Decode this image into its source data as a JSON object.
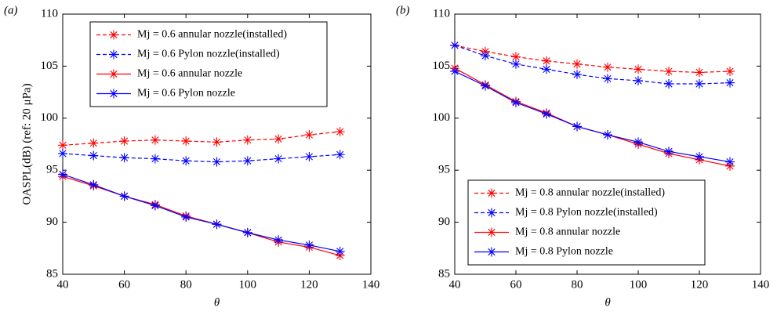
{
  "chart_data": [
    {
      "type": "line",
      "label": "(a)",
      "ylabel": "OASPL(dB) (ref: 20 μPa)",
      "xlabel": "θ",
      "x": [
        40,
        50,
        60,
        70,
        80,
        90,
        100,
        110,
        120,
        130
      ],
      "xlim": [
        40,
        140
      ],
      "xticks": [
        40,
        60,
        80,
        100,
        120,
        140
      ],
      "ylim": [
        85,
        110
      ],
      "yticks": [
        85,
        90,
        95,
        100,
        105,
        110
      ],
      "legend": "upper left",
      "series": [
        {
          "name": "Mj = 0.6 annular nozzle(installed)",
          "color": "#ff0000",
          "style": "dashed",
          "values": [
            97.4,
            97.6,
            97.8,
            97.9,
            97.8,
            97.7,
            97.9,
            98.0,
            98.4,
            98.7
          ]
        },
        {
          "name": "Mj = 0.6 Pylon nozzle(installed)",
          "color": "#0000ff",
          "style": "dashed",
          "values": [
            96.6,
            96.4,
            96.2,
            96.1,
            95.9,
            95.8,
            95.9,
            96.1,
            96.3,
            96.5
          ]
        },
        {
          "name": "Mj = 0.6 annular nozzle",
          "color": "#ff0000",
          "style": "solid",
          "values": [
            94.4,
            93.5,
            92.5,
            91.7,
            90.6,
            89.8,
            89.0,
            88.1,
            87.6,
            86.8
          ]
        },
        {
          "name": "Mj = 0.6 Pylon nozzle",
          "color": "#0000ff",
          "style": "solid",
          "values": [
            94.6,
            93.6,
            92.5,
            91.6,
            90.5,
            89.8,
            89.0,
            88.3,
            87.8,
            87.2
          ]
        }
      ]
    },
    {
      "type": "line",
      "label": "(b)",
      "xlabel": "θ",
      "x": [
        40,
        50,
        60,
        70,
        80,
        90,
        100,
        110,
        120,
        130
      ],
      "xlim": [
        40,
        140
      ],
      "xticks": [
        40,
        60,
        80,
        100,
        120,
        140
      ],
      "ylim": [
        85,
        110
      ],
      "yticks": [
        85,
        90,
        95,
        100,
        105,
        110
      ],
      "legend": "lower left",
      "series": [
        {
          "name": "Mj = 0.8 annular nozzle(installed)",
          "color": "#ff0000",
          "style": "dashed",
          "values": [
            107.0,
            106.4,
            105.9,
            105.5,
            105.2,
            104.9,
            104.7,
            104.5,
            104.4,
            104.5
          ]
        },
        {
          "name": "Mj = 0.8 Pylon nozzle(installed)",
          "color": "#0000ff",
          "style": "dashed",
          "values": [
            107.0,
            106.0,
            105.2,
            104.7,
            104.2,
            103.8,
            103.6,
            103.3,
            103.3,
            103.4
          ]
        },
        {
          "name": "Mj = 0.8 annular nozzle",
          "color": "#ff0000",
          "style": "solid",
          "values": [
            104.8,
            103.2,
            101.6,
            100.5,
            99.2,
            98.4,
            97.5,
            96.6,
            96.0,
            95.4
          ]
        },
        {
          "name": "Mj = 0.8 Pylon nozzle",
          "color": "#0000ff",
          "style": "solid",
          "values": [
            104.5,
            103.1,
            101.5,
            100.4,
            99.2,
            98.4,
            97.7,
            96.8,
            96.3,
            95.8
          ]
        }
      ]
    }
  ]
}
